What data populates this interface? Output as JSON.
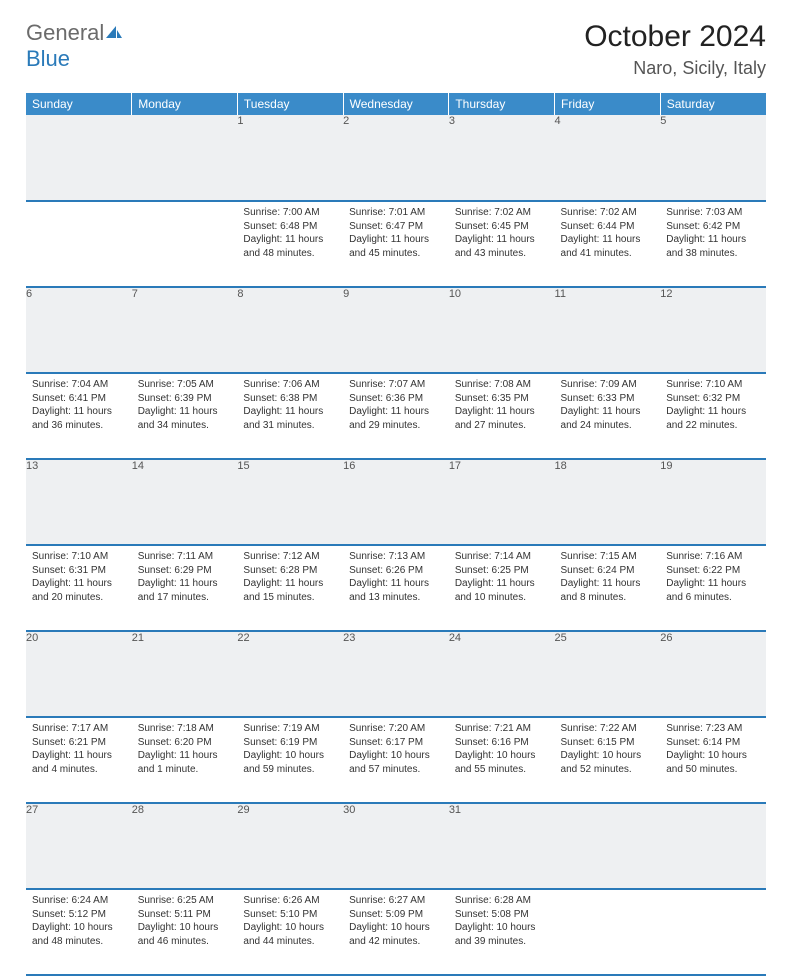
{
  "logo": {
    "text1": "General",
    "text2": "Blue"
  },
  "title": "October 2024",
  "location": "Naro, Sicily, Italy",
  "colors": {
    "header_bg": "#3a8bc9",
    "header_text": "#ffffff",
    "border": "#2a7ab9",
    "daynum_bg": "#eef0f2",
    "text": "#333333",
    "logo_gray": "#6b6b6b",
    "logo_blue": "#2a7ab9"
  },
  "weekdays": [
    "Sunday",
    "Monday",
    "Tuesday",
    "Wednesday",
    "Thursday",
    "Friday",
    "Saturday"
  ],
  "weeks": [
    [
      null,
      null,
      {
        "n": "1",
        "sr": "7:00 AM",
        "ss": "6:48 PM",
        "dl": "11 hours and 48 minutes."
      },
      {
        "n": "2",
        "sr": "7:01 AM",
        "ss": "6:47 PM",
        "dl": "11 hours and 45 minutes."
      },
      {
        "n": "3",
        "sr": "7:02 AM",
        "ss": "6:45 PM",
        "dl": "11 hours and 43 minutes."
      },
      {
        "n": "4",
        "sr": "7:02 AM",
        "ss": "6:44 PM",
        "dl": "11 hours and 41 minutes."
      },
      {
        "n": "5",
        "sr": "7:03 AM",
        "ss": "6:42 PM",
        "dl": "11 hours and 38 minutes."
      }
    ],
    [
      {
        "n": "6",
        "sr": "7:04 AM",
        "ss": "6:41 PM",
        "dl": "11 hours and 36 minutes."
      },
      {
        "n": "7",
        "sr": "7:05 AM",
        "ss": "6:39 PM",
        "dl": "11 hours and 34 minutes."
      },
      {
        "n": "8",
        "sr": "7:06 AM",
        "ss": "6:38 PM",
        "dl": "11 hours and 31 minutes."
      },
      {
        "n": "9",
        "sr": "7:07 AM",
        "ss": "6:36 PM",
        "dl": "11 hours and 29 minutes."
      },
      {
        "n": "10",
        "sr": "7:08 AM",
        "ss": "6:35 PM",
        "dl": "11 hours and 27 minutes."
      },
      {
        "n": "11",
        "sr": "7:09 AM",
        "ss": "6:33 PM",
        "dl": "11 hours and 24 minutes."
      },
      {
        "n": "12",
        "sr": "7:10 AM",
        "ss": "6:32 PM",
        "dl": "11 hours and 22 minutes."
      }
    ],
    [
      {
        "n": "13",
        "sr": "7:10 AM",
        "ss": "6:31 PM",
        "dl": "11 hours and 20 minutes."
      },
      {
        "n": "14",
        "sr": "7:11 AM",
        "ss": "6:29 PM",
        "dl": "11 hours and 17 minutes."
      },
      {
        "n": "15",
        "sr": "7:12 AM",
        "ss": "6:28 PM",
        "dl": "11 hours and 15 minutes."
      },
      {
        "n": "16",
        "sr": "7:13 AM",
        "ss": "6:26 PM",
        "dl": "11 hours and 13 minutes."
      },
      {
        "n": "17",
        "sr": "7:14 AM",
        "ss": "6:25 PM",
        "dl": "11 hours and 10 minutes."
      },
      {
        "n": "18",
        "sr": "7:15 AM",
        "ss": "6:24 PM",
        "dl": "11 hours and 8 minutes."
      },
      {
        "n": "19",
        "sr": "7:16 AM",
        "ss": "6:22 PM",
        "dl": "11 hours and 6 minutes."
      }
    ],
    [
      {
        "n": "20",
        "sr": "7:17 AM",
        "ss": "6:21 PM",
        "dl": "11 hours and 4 minutes."
      },
      {
        "n": "21",
        "sr": "7:18 AM",
        "ss": "6:20 PM",
        "dl": "11 hours and 1 minute."
      },
      {
        "n": "22",
        "sr": "7:19 AM",
        "ss": "6:19 PM",
        "dl": "10 hours and 59 minutes."
      },
      {
        "n": "23",
        "sr": "7:20 AM",
        "ss": "6:17 PM",
        "dl": "10 hours and 57 minutes."
      },
      {
        "n": "24",
        "sr": "7:21 AM",
        "ss": "6:16 PM",
        "dl": "10 hours and 55 minutes."
      },
      {
        "n": "25",
        "sr": "7:22 AM",
        "ss": "6:15 PM",
        "dl": "10 hours and 52 minutes."
      },
      {
        "n": "26",
        "sr": "7:23 AM",
        "ss": "6:14 PM",
        "dl": "10 hours and 50 minutes."
      }
    ],
    [
      {
        "n": "27",
        "sr": "6:24 AM",
        "ss": "5:12 PM",
        "dl": "10 hours and 48 minutes."
      },
      {
        "n": "28",
        "sr": "6:25 AM",
        "ss": "5:11 PM",
        "dl": "10 hours and 46 minutes."
      },
      {
        "n": "29",
        "sr": "6:26 AM",
        "ss": "5:10 PM",
        "dl": "10 hours and 44 minutes."
      },
      {
        "n": "30",
        "sr": "6:27 AM",
        "ss": "5:09 PM",
        "dl": "10 hours and 42 minutes."
      },
      {
        "n": "31",
        "sr": "6:28 AM",
        "ss": "5:08 PM",
        "dl": "10 hours and 39 minutes."
      },
      null,
      null
    ]
  ],
  "labels": {
    "sunrise": "Sunrise: ",
    "sunset": "Sunset: ",
    "daylight": "Daylight: "
  }
}
